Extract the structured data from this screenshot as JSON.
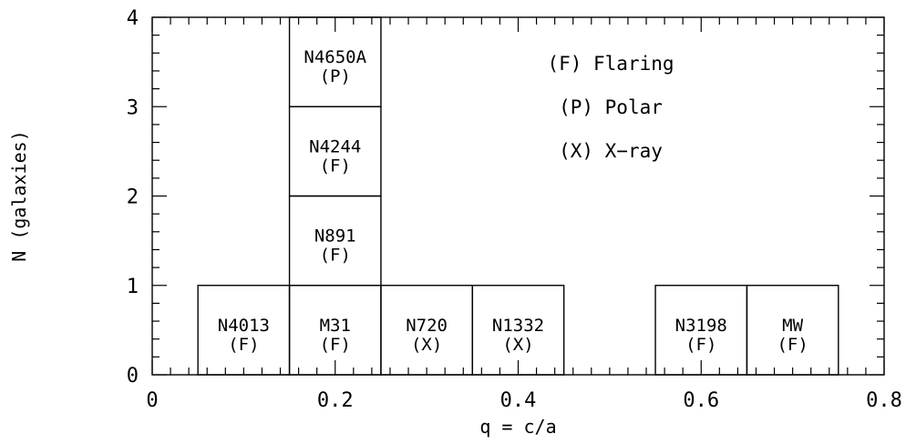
{
  "chart_data": {
    "type": "bar",
    "title": "",
    "xlabel": "q = c/a",
    "ylabel": "N (galaxies)",
    "xlim": [
      0,
      0.8
    ],
    "ylim": [
      0,
      4
    ],
    "x_ticks": [
      "0",
      "0.2",
      "0.4",
      "0.6",
      "0.8"
    ],
    "y_ticks": [
      "0",
      "1",
      "2",
      "3",
      "4"
    ],
    "bin_width": 0.1,
    "grid": false,
    "galaxies": [
      {
        "name": "N4013",
        "code": "(F)",
        "x_lo": 0.05,
        "x_hi": 0.15,
        "level": 0
      },
      {
        "name": "M31",
        "code": "(F)",
        "x_lo": 0.15,
        "x_hi": 0.25,
        "level": 0
      },
      {
        "name": "N891",
        "code": "(F)",
        "x_lo": 0.15,
        "x_hi": 0.25,
        "level": 1
      },
      {
        "name": "N4244",
        "code": "(F)",
        "x_lo": 0.15,
        "x_hi": 0.25,
        "level": 2
      },
      {
        "name": "N4650A",
        "code": "(P)",
        "x_lo": 0.15,
        "x_hi": 0.25,
        "level": 3
      },
      {
        "name": "N720",
        "code": "(X)",
        "x_lo": 0.25,
        "x_hi": 0.35,
        "level": 0
      },
      {
        "name": "N1332",
        "code": "(X)",
        "x_lo": 0.35,
        "x_hi": 0.45,
        "level": 0
      },
      {
        "name": "N3198",
        "code": "(F)",
        "x_lo": 0.55,
        "x_hi": 0.65,
        "level": 0
      },
      {
        "name": "MW",
        "code": "(F)",
        "x_lo": 0.65,
        "x_hi": 0.75,
        "level": 0
      }
    ],
    "legend": [
      "(F) Flaring",
      "(P) Polar",
      "(X) X−ray"
    ],
    "legend_position": "top-right"
  }
}
